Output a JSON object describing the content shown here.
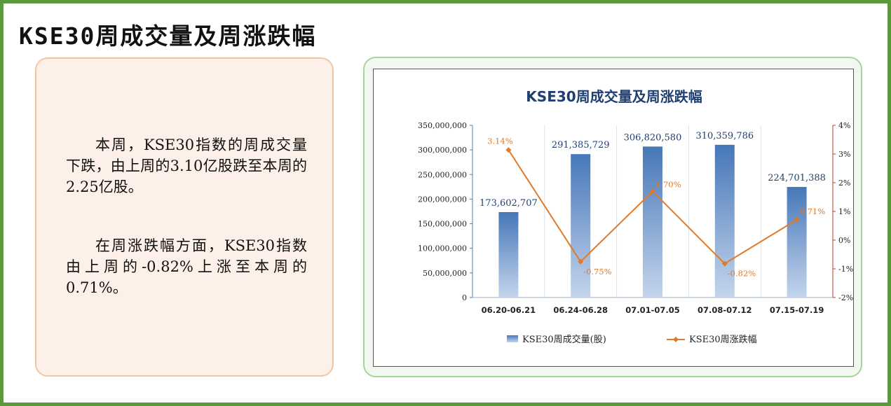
{
  "page": {
    "title": "KSE30周成交量及周涨跌幅",
    "paragraphs": [
      "本周，KSE30指数的周成交量下跌，由上周的3.10亿股跌至本周的2.25亿股。",
      "在周涨跌幅方面，KSE30指数由上周的-0.82%上涨至本周的0.71%。"
    ]
  },
  "colors": {
    "frame": "#5b9a3c",
    "bar_top": "#4677b8",
    "bar_bottom": "#c4d5ec",
    "line": "#e07a2a",
    "right_axis": "#c0392b",
    "title": "#1f3f73"
  },
  "chart_data": {
    "type": "bar",
    "title": "KSE30周成交量及周涨跌幅",
    "categories": [
      "06.20-06.21",
      "06.24-06.28",
      "07.01-07.05",
      "07.08-07.12",
      "07.15-07.19"
    ],
    "series": [
      {
        "name": "KSE30周成交量(股)",
        "type": "bar",
        "axis": "left",
        "values": [
          173602707,
          291385729,
          306820580,
          310359786,
          224701388
        ],
        "labels": [
          "173,602,707",
          "291,385,729",
          "306,820,580",
          "310,359,786",
          "224,701,388"
        ]
      },
      {
        "name": "KSE30周涨跌幅",
        "type": "line",
        "axis": "right",
        "values": [
          3.14,
          -0.75,
          1.7,
          -0.82,
          0.71
        ],
        "labels": [
          "3.14%",
          "-0.75%",
          "1.70%",
          "-0.82%",
          "0.71%"
        ]
      }
    ],
    "left_axis": {
      "min": 0,
      "max": 350000000,
      "ticks": [
        "0",
        "50,000,000",
        "100,000,000",
        "150,000,000",
        "200,000,000",
        "250,000,000",
        "300,000,000",
        "350,000,000"
      ]
    },
    "right_axis": {
      "min": -2,
      "max": 4,
      "ticks": [
        "-2%",
        "-1%",
        "0%",
        "1%",
        "2%",
        "3%",
        "4%"
      ]
    },
    "grid": false,
    "legend": "bottom"
  }
}
